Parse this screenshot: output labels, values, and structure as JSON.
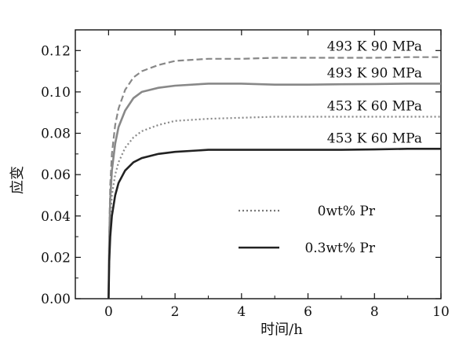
{
  "chart_data": {
    "type": "line",
    "title": "",
    "xlabel": "时间/h",
    "ylabel": "应变",
    "xlim": [
      -1,
      10
    ],
    "ylim": [
      0.0,
      0.13
    ],
    "xticks": [
      0,
      2,
      4,
      6,
      8,
      10
    ],
    "xtick_labels": [
      "0",
      "2",
      "4",
      "6",
      "8",
      "10"
    ],
    "yticks": [
      0.0,
      0.02,
      0.04,
      0.06,
      0.08,
      0.1,
      0.12
    ],
    "ytick_labels": [
      "0.00",
      "0.02",
      "0.04",
      "0.06",
      "0.08",
      "0.10",
      "0.12"
    ],
    "grid": false,
    "legend_position": "lower-right",
    "legend": [
      {
        "label": "0wt% Pr",
        "style": "dotted"
      },
      {
        "label": "0.3wt% Pr",
        "style": "solid"
      }
    ],
    "series": [
      {
        "condition_label": "493 K   90 MPa",
        "alloy": "0wt% Pr",
        "style": "dashed",
        "color": "#888888",
        "x": [
          0,
          0.02,
          0.05,
          0.1,
          0.2,
          0.3,
          0.5,
          0.75,
          1.0,
          1.5,
          2.0,
          3.0,
          4.0,
          5.0,
          6.0,
          7.0,
          8.0,
          9.0,
          10.0
        ],
        "y": [
          0.0,
          0.03,
          0.055,
          0.07,
          0.084,
          0.092,
          0.101,
          0.107,
          0.11,
          0.113,
          0.115,
          0.116,
          0.116,
          0.1165,
          0.1165,
          0.1165,
          0.1165,
          0.1168,
          0.1168
        ]
      },
      {
        "condition_label": "493 K   90 MPa",
        "alloy": "0.3wt% Pr",
        "style": "solid",
        "color": "#888888",
        "x": [
          0,
          0.02,
          0.05,
          0.1,
          0.2,
          0.3,
          0.5,
          0.75,
          1.0,
          1.5,
          2.0,
          3.0,
          4.0,
          5.0,
          6.0,
          7.0,
          8.0,
          9.0,
          10.0
        ],
        "y": [
          0.0,
          0.028,
          0.048,
          0.062,
          0.075,
          0.083,
          0.091,
          0.097,
          0.1,
          0.102,
          0.103,
          0.104,
          0.104,
          0.1035,
          0.1035,
          0.1037,
          0.1038,
          0.104,
          0.104
        ]
      },
      {
        "condition_label": "453 K   60 MPa",
        "alloy": "0wt% Pr",
        "style": "dotted",
        "color": "#888888",
        "x": [
          0,
          0.02,
          0.05,
          0.1,
          0.2,
          0.3,
          0.5,
          0.75,
          1.0,
          1.5,
          2.0,
          3.0,
          4.0,
          5.0,
          6.0,
          7.0,
          8.0,
          9.0,
          10.0
        ],
        "y": [
          0.0,
          0.022,
          0.038,
          0.05,
          0.06,
          0.066,
          0.073,
          0.078,
          0.081,
          0.084,
          0.086,
          0.087,
          0.0875,
          0.088,
          0.088,
          0.088,
          0.088,
          0.088,
          0.088
        ]
      },
      {
        "condition_label": "453 K   60 MPa",
        "alloy": "0.3wt% Pr",
        "style": "solid",
        "color": "#222222",
        "x": [
          0,
          0.02,
          0.05,
          0.1,
          0.2,
          0.3,
          0.5,
          0.75,
          1.0,
          1.5,
          2.0,
          3.0,
          4.0,
          5.0,
          6.0,
          7.0,
          8.0,
          9.0,
          10.0
        ],
        "y": [
          0.0,
          0.018,
          0.03,
          0.04,
          0.05,
          0.056,
          0.062,
          0.066,
          0.068,
          0.07,
          0.071,
          0.072,
          0.072,
          0.072,
          0.072,
          0.072,
          0.0722,
          0.0725,
          0.0725
        ]
      }
    ]
  }
}
